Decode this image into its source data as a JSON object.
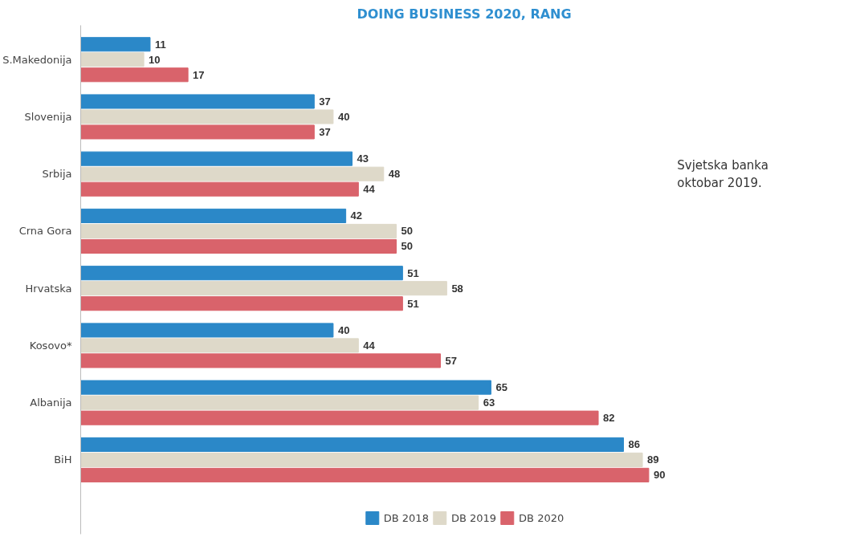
{
  "chart_data": {
    "type": "bar",
    "orientation": "horizontal",
    "title": "DOING BUSINESS 2020, RANG",
    "categories": [
      "S.Makedonija",
      "Slovenija",
      "Srbija",
      "Crna Gora",
      "Hrvatska",
      "Kosovo*",
      "Albanija",
      "BiH"
    ],
    "series": [
      {
        "name": "DB 2018",
        "color": "#2b88c8",
        "values": [
          11,
          37,
          43,
          42,
          51,
          40,
          65,
          86
        ]
      },
      {
        "name": "DB 2019",
        "color": "#ded9c9",
        "values": [
          10,
          40,
          48,
          50,
          58,
          44,
          63,
          89
        ]
      },
      {
        "name": "DB 2020",
        "color": "#d9636b",
        "values": [
          17,
          37,
          44,
          50,
          51,
          57,
          82,
          90
        ]
      }
    ],
    "data_labels": true,
    "legend": "bottom",
    "grid": false,
    "annotations": [
      "Svjetska banka\noktobar 2019."
    ]
  }
}
